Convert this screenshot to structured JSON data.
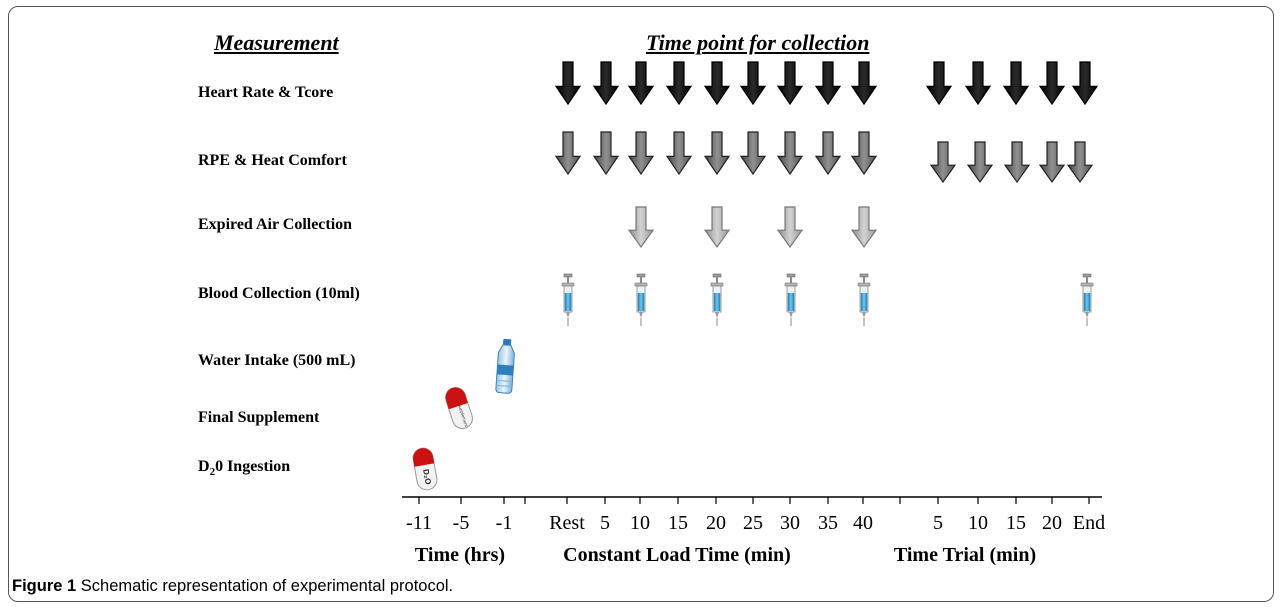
{
  "headers": {
    "measurement": "Measurement",
    "timepoint": "Time point for collection"
  },
  "rows": {
    "heart_rate": "Heart Rate & Tcore",
    "rpe": "RPE & Heat Comfort",
    "expired_air": "Expired Air Collection",
    "blood": "Blood Collection (10ml)",
    "water": "Water Intake (500 mL)",
    "supplement": "Final Supplement",
    "d2o_prefix": "D",
    "d2o_sub": "2",
    "d2o_suffix": "0 Ingestion"
  },
  "ticks": {
    "t_m11": "-11",
    "t_m5": "-5",
    "t_m1": "-1",
    "c_rest": "Rest",
    "c_5": "5",
    "c_10": "10",
    "c_15": "15",
    "c_20": "20",
    "c_25": "25",
    "c_30": "30",
    "c_35": "35",
    "c_40": "40",
    "tt_5": "5",
    "tt_10": "10",
    "tt_15": "15",
    "tt_20": "20",
    "tt_end": "End"
  },
  "axis_groups": {
    "time_hrs": "Time (hrs)",
    "constant_load": "Constant Load Time (min)",
    "time_trial": "Time Trial (min)"
  },
  "pill_labels": {
    "supplement": "Supplement",
    "d2o": "D₂O"
  },
  "caption": {
    "label": "Figure 1",
    "text": " Schematic representation of experimental protocol."
  },
  "colors": {
    "arrow_black": "#000000",
    "arrow_dark_gray": "#6d6d6d",
    "arrow_light_gray": "#b3b3b3",
    "pill_red": "#cc1111",
    "syringe_liquid": "#3aa6d8"
  }
}
